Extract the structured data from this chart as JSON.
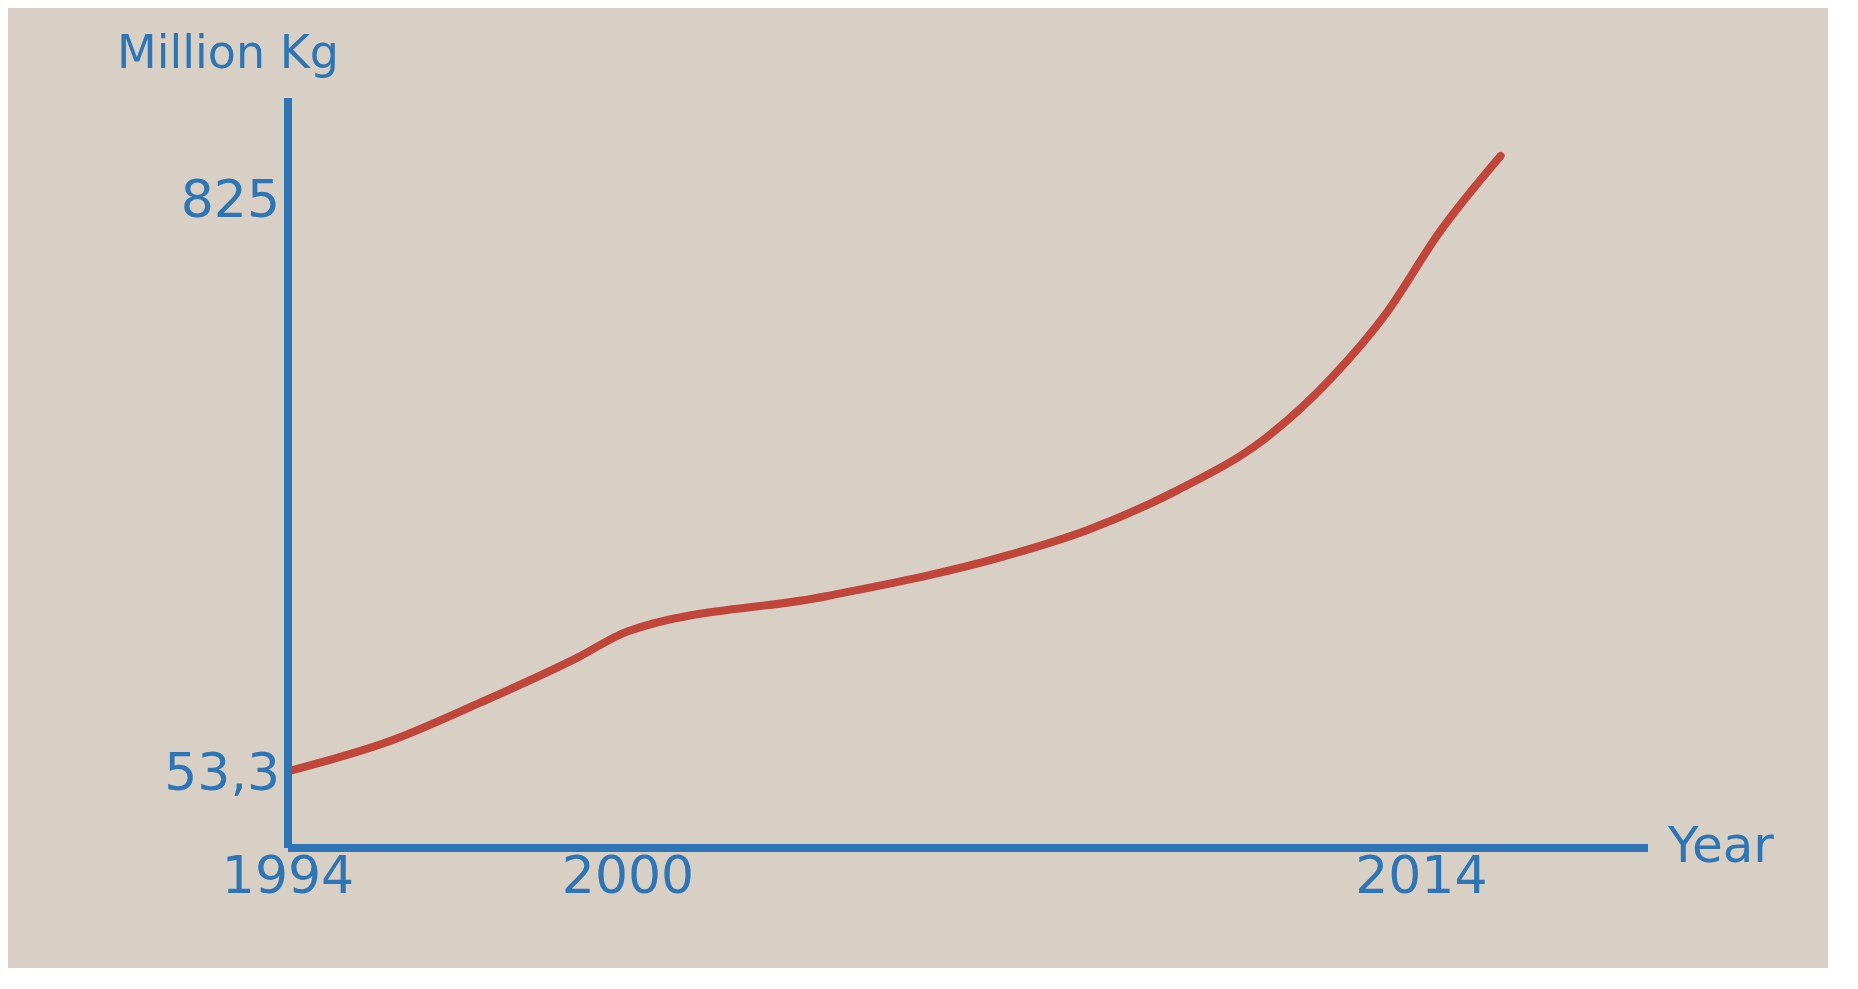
{
  "chart_data": {
    "type": "line",
    "ylabel": "Million Kg",
    "xlabel": "Year",
    "x": [
      1994,
      1995.8,
      1997.4,
      1999.1,
      2000,
      2003.5,
      2006.6,
      2008.1,
      2009.7,
      2011.2,
      2012.4,
      2013.4,
      2014.3,
      2015.4
    ],
    "series": [
      {
        "color": "#c0453a",
        "values": [
          53.3,
          94,
          146,
          206,
          242,
          289,
          342,
          378,
          432,
          499,
          582,
          672,
          777,
          882
        ]
      }
    ],
    "xlim": [
      1994,
      2018
    ],
    "xticks": [
      1994,
      2000,
      2014
    ],
    "ylim": [
      -50,
      960
    ],
    "yticks": [
      {
        "value": 53.3,
        "label": "53,3"
      },
      825
    ],
    "grid": false,
    "legend": false,
    "marker": "none",
    "line_style": "solid"
  }
}
